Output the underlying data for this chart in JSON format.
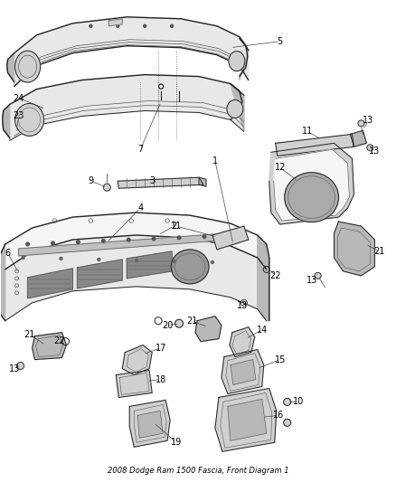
{
  "title": "2008 Dodge Ram 1500 Fascia, Front Diagram 1",
  "bg_color": "#ffffff",
  "fig_width": 4.38,
  "fig_height": 5.33,
  "dpi": 100,
  "lc": "#555555",
  "lc_dark": "#222222",
  "fill_light": "#e8e8e8",
  "fill_mid": "#d0d0d0",
  "fill_dark": "#b8b8b8",
  "fill_white": "#f5f5f5",
  "font_size": 7.0,
  "title_font_size": 6.0
}
